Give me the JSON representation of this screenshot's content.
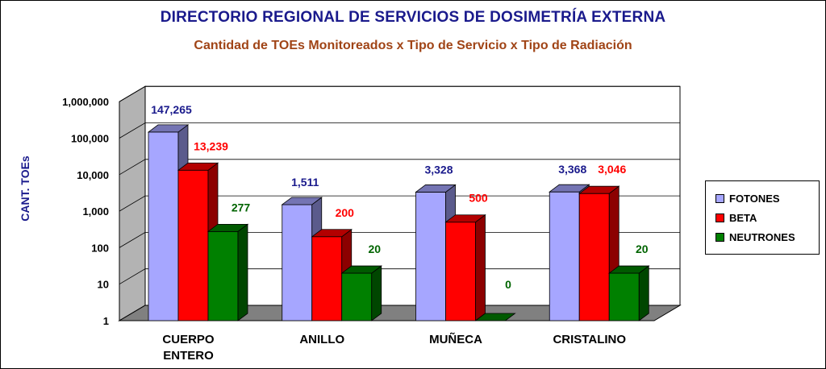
{
  "chart_data": {
    "type": "bar",
    "title": "DIRECTORIO REGIONAL DE SERVICIOS DE DOSIMETRÍA EXTERNA",
    "subtitle": "Cantidad de TOEs Monitoreados x Tipo de Servicio x Tipo de Radiación",
    "xlabel": "",
    "ylabel": "CANT. TOEs",
    "y_scale": "log",
    "ylim": [
      1,
      1000000
    ],
    "y_ticks": [
      1,
      10,
      100,
      1000,
      10000,
      100000,
      1000000
    ],
    "y_tick_labels": [
      "1",
      "10",
      "100",
      "1,000",
      "10,000",
      "100,000",
      "1,000,000"
    ],
    "grid": true,
    "legend_position": "right",
    "categories": [
      [
        "CUERPO",
        "ENTERO"
      ],
      [
        "ANILLO"
      ],
      [
        "MUÑECA"
      ],
      [
        "CRISTALINO"
      ]
    ],
    "series": [
      {
        "name": "FOTONES",
        "values": [
          147265,
          1511,
          3328,
          3368
        ],
        "labels": [
          "147,265",
          "1,511",
          "3,328",
          "3,368"
        ],
        "color": "#a6a6ff",
        "label_color": "#1a1a8c"
      },
      {
        "name": "BETA",
        "values": [
          13239,
          200,
          500,
          3046
        ],
        "labels": [
          "13,239",
          "200",
          "500",
          "3,046"
        ],
        "color": "#ff0000",
        "label_color": "#ff0000"
      },
      {
        "name": "NEUTRONES",
        "values": [
          277,
          20,
          0,
          20
        ],
        "labels": [
          "277",
          "20",
          "0",
          "20"
        ],
        "color": "#008000",
        "label_color": "#006400"
      }
    ]
  }
}
